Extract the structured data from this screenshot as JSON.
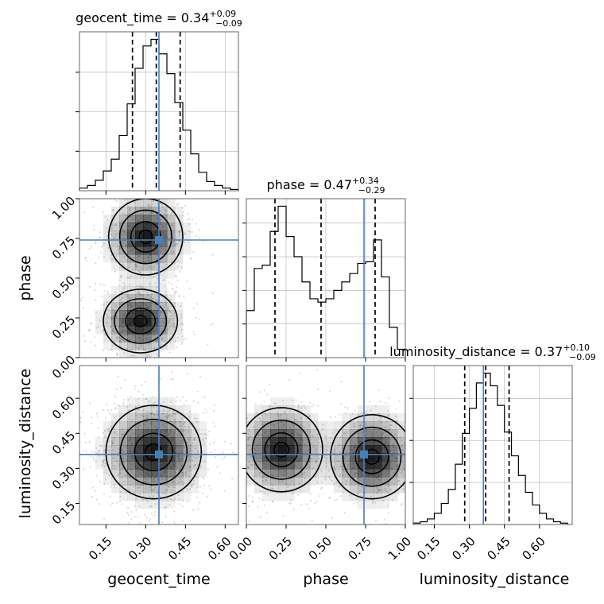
{
  "colors": {
    "truth": "#4a7fb5",
    "hist": "#000000",
    "grid": "#b0b0b0",
    "density": "#000000"
  },
  "chart_data": {
    "type": "corner",
    "parameters": [
      "geocent_time",
      "phase",
      "luminosity_distance"
    ],
    "truths": [
      0.35,
      0.74,
      0.36
    ],
    "grid": true,
    "panels_1d": [
      {
        "parameter": "geocent_time",
        "title": {
          "main": "geocent_time = 0.34",
          "sup": "+0.09",
          "sub": "−0.09"
        },
        "xlim": [
          0.05,
          0.65
        ],
        "edges": [
          0.05,
          0.08,
          0.11,
          0.14,
          0.17,
          0.2,
          0.23,
          0.26,
          0.29,
          0.32,
          0.35,
          0.38,
          0.41,
          0.44,
          0.47,
          0.5,
          0.53,
          0.56,
          0.59,
          0.62,
          0.65
        ],
        "counts": [
          2,
          4,
          8,
          15,
          24,
          42,
          66,
          93,
          110,
          115,
          104,
          89,
          67,
          46,
          28,
          14,
          7,
          4,
          2,
          1
        ],
        "quantiles": [
          0.25,
          0.34,
          0.43
        ],
        "yticks": [
          30,
          60,
          90
        ]
      },
      {
        "parameter": "phase",
        "title": {
          "main": "phase = 0.47",
          "sup": "+0.34",
          "sub": "−0.29"
        },
        "xlim": [
          0.0,
          1.0
        ],
        "edges": [
          0.0,
          0.05,
          0.1,
          0.15,
          0.2,
          0.25,
          0.3,
          0.35,
          0.4,
          0.45,
          0.5,
          0.55,
          0.6,
          0.65,
          0.7,
          0.75,
          0.8,
          0.85,
          0.9,
          0.95,
          1.0
        ],
        "counts": [
          28,
          53,
          55,
          75,
          90,
          72,
          60,
          45,
          35,
          33,
          35,
          40,
          45,
          50,
          56,
          57,
          70,
          48,
          18,
          5
        ],
        "quantiles": [
          0.18,
          0.47,
          0.81
        ],
        "yticks": [
          20,
          40,
          60,
          80
        ]
      },
      {
        "parameter": "luminosity_distance",
        "title": {
          "main": "luminosity_distance = 0.37",
          "sup": "+0.10",
          "sub": "−0.09"
        },
        "xlim": [
          0.06,
          0.74
        ],
        "edges": [
          0.06,
          0.09,
          0.12,
          0.15,
          0.18,
          0.21,
          0.24,
          0.27,
          0.3,
          0.33,
          0.36,
          0.39,
          0.42,
          0.45,
          0.48,
          0.51,
          0.54,
          0.57,
          0.6,
          0.63,
          0.66,
          0.69,
          0.72
        ],
        "counts": [
          1,
          2,
          4,
          8,
          15,
          25,
          43,
          65,
          83,
          101,
          108,
          99,
          85,
          66,
          49,
          35,
          23,
          14,
          8,
          4,
          2,
          1
        ],
        "quantiles": [
          0.28,
          0.37,
          0.47
        ],
        "yticks": [
          30,
          60,
          90
        ]
      }
    ],
    "panels_2d": [
      {
        "x": "geocent_time",
        "y": "phase",
        "xlim": [
          0.05,
          0.65
        ],
        "ylim": [
          0.0,
          1.0
        ],
        "modes": [
          {
            "cx": 0.3,
            "cy": 0.76,
            "sx": 0.07,
            "sy": 0.12
          },
          {
            "cx": 0.28,
            "cy": 0.23,
            "sx": 0.07,
            "sy": 0.1
          }
        ]
      },
      {
        "x": "geocent_time",
        "y": "luminosity_distance",
        "xlim": [
          0.05,
          0.65
        ],
        "ylim": [
          0.06,
          0.74
        ],
        "modes": [
          {
            "cx": 0.33,
            "cy": 0.37,
            "sx": 0.09,
            "sy": 0.1
          }
        ]
      },
      {
        "x": "phase",
        "y": "luminosity_distance",
        "xlim": [
          0.0,
          1.0
        ],
        "ylim": [
          0.06,
          0.74
        ],
        "modes": [
          {
            "cx": 0.22,
            "cy": 0.38,
            "sx": 0.13,
            "sy": 0.09
          },
          {
            "cx": 0.79,
            "cy": 0.35,
            "sx": 0.13,
            "sy": 0.09
          }
        ]
      }
    ],
    "axes": {
      "geocent_time": {
        "ticks": [
          0.15,
          0.3,
          0.45,
          0.6
        ],
        "labels": [
          "0.15",
          "0.30",
          "0.45",
          "0.60"
        ]
      },
      "phase": {
        "ticks": [
          0.0,
          0.25,
          0.5,
          0.75,
          1.0
        ],
        "labels": [
          "0.00",
          "0.25",
          "0.50",
          "0.75",
          "1.00"
        ]
      },
      "luminosity_distance": {
        "ticks": [
          0.15,
          0.3,
          0.45,
          0.6
        ],
        "labels": [
          "0.15",
          "0.30",
          "0.45",
          "0.60"
        ]
      }
    },
    "xlabels": [
      "geocent_time",
      "phase",
      "luminosity_distance"
    ],
    "ylabels": [
      "phase",
      "luminosity_distance"
    ]
  }
}
